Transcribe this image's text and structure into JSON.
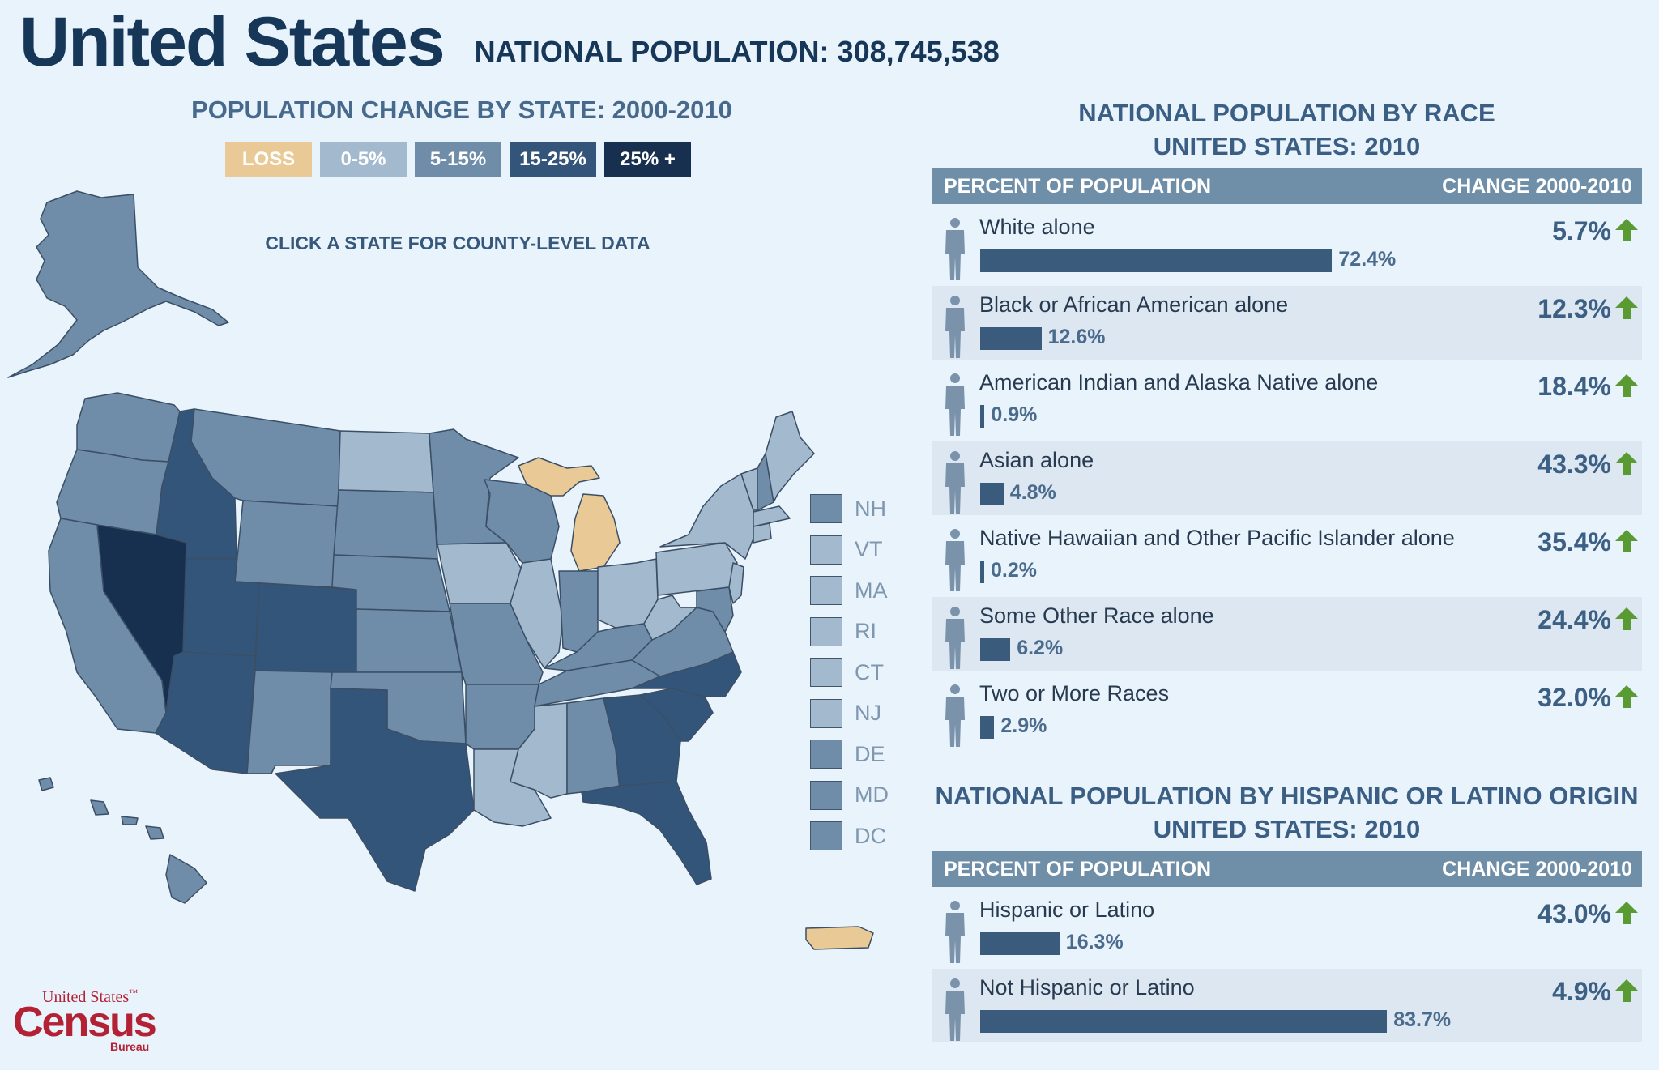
{
  "header": {
    "title": "United States",
    "national_population": "NATIONAL POPULATION: 308,745,538"
  },
  "map_panel": {
    "heading": "POPULATION CHANGE BY STATE: 2000-2010",
    "legend": [
      {
        "label": "LOSS",
        "color": "#e9c996"
      },
      {
        "label": "0-5%",
        "color": "#a3b9ce"
      },
      {
        "label": "5-15%",
        "color": "#6f8ca8"
      },
      {
        "label": "15-25%",
        "color": "#34557a"
      },
      {
        "label": "25% +",
        "color": "#17304f"
      }
    ],
    "click_hint": "CLICK A STATE FOR COUNTY-LEVEL DATA",
    "small_states": [
      {
        "abbr": "NH",
        "color": "#6f8ca8"
      },
      {
        "abbr": "VT",
        "color": "#a3b9ce"
      },
      {
        "abbr": "MA",
        "color": "#a3b9ce"
      },
      {
        "abbr": "RI",
        "color": "#a3b9ce"
      },
      {
        "abbr": "CT",
        "color": "#a3b9ce"
      },
      {
        "abbr": "NJ",
        "color": "#a3b9ce"
      },
      {
        "abbr": "DE",
        "color": "#6f8ca8"
      },
      {
        "abbr": "MD",
        "color": "#6f8ca8"
      },
      {
        "abbr": "DC",
        "color": "#6f8ca8"
      }
    ]
  },
  "race_panel": {
    "heading_line1": "NATIONAL POPULATION BY RACE",
    "heading_line2": "UNITED STATES: 2010",
    "col_left": "PERCENT OF POPULATION",
    "col_right": "CHANGE 2000-2010",
    "rows": [
      {
        "name": "White alone",
        "percent": 72.4,
        "percent_label": "72.4%",
        "change": "5.7%"
      },
      {
        "name": "Black or African American alone",
        "percent": 12.6,
        "percent_label": "12.6%",
        "change": "12.3%"
      },
      {
        "name": "American Indian and Alaska Native alone",
        "percent": 0.9,
        "percent_label": "0.9%",
        "change": "18.4%"
      },
      {
        "name": "Asian alone",
        "percent": 4.8,
        "percent_label": "4.8%",
        "change": "43.3%"
      },
      {
        "name": "Native Hawaiian and Other Pacific Islander alone",
        "percent": 0.2,
        "percent_label": "0.2%",
        "change": "35.4%"
      },
      {
        "name": "Some Other Race alone",
        "percent": 6.2,
        "percent_label": "6.2%",
        "change": "24.4%"
      },
      {
        "name": "Two or More Races",
        "percent": 2.9,
        "percent_label": "2.9%",
        "change": "32.0%"
      }
    ]
  },
  "hispanic_panel": {
    "heading_line1": "NATIONAL POPULATION BY HISPANIC OR LATINO ORIGIN",
    "heading_line2": "UNITED STATES: 2010",
    "col_left": "PERCENT OF POPULATION",
    "col_right": "CHANGE 2000-2010",
    "rows": [
      {
        "name": "Hispanic or Latino",
        "percent": 16.3,
        "percent_label": "16.3%",
        "change": "43.0%"
      },
      {
        "name": "Not Hispanic or Latino",
        "percent": 83.7,
        "percent_label": "83.7%",
        "change": "4.9%"
      }
    ]
  },
  "logo": {
    "line1": "United States",
    "tm": "™",
    "line2": "Census",
    "line3": "Bureau"
  },
  "colors": {
    "loss": "#e9c996",
    "c0_5": "#a3b9ce",
    "c5_15": "#6f8ca8",
    "c15_25": "#34557a",
    "c25": "#17304f",
    "arrow": "#5a9a32"
  }
}
